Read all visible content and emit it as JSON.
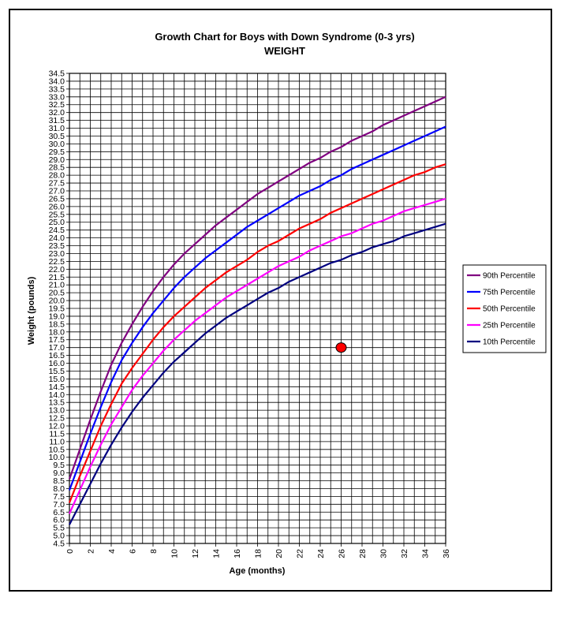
{
  "chart_data": {
    "type": "line",
    "title": "Growth Chart for Boys with Down Syndrome (0-3 yrs)",
    "subtitle": "WEIGHT",
    "xlabel": "Age (months)",
    "ylabel": "Weight  (pounds)",
    "xlim": [
      0,
      36
    ],
    "ylim": [
      4.5,
      34.5
    ],
    "x_tick_step": 2,
    "y_tick_step": 0.5,
    "x_grid_step": 1,
    "grid": true,
    "legend_position": "right",
    "x": [
      0,
      1,
      2,
      3,
      4,
      5,
      6,
      7,
      8,
      9,
      10,
      11,
      12,
      13,
      14,
      15,
      16,
      17,
      18,
      19,
      20,
      21,
      22,
      23,
      24,
      25,
      26,
      27,
      28,
      29,
      30,
      31,
      32,
      33,
      34,
      35,
      36
    ],
    "series": [
      {
        "name": "90th Percentile",
        "color": "#800080",
        "values": [
          8.6,
          10.5,
          12.4,
          14.2,
          15.9,
          17.3,
          18.5,
          19.6,
          20.6,
          21.5,
          22.3,
          23.0,
          23.6,
          24.2,
          24.8,
          25.3,
          25.8,
          26.3,
          26.8,
          27.2,
          27.6,
          28.0,
          28.4,
          28.8,
          29.1,
          29.5,
          29.8,
          30.2,
          30.5,
          30.8,
          31.2,
          31.5,
          31.8,
          32.1,
          32.4,
          32.7,
          33.0
        ]
      },
      {
        "name": "75th Percentile",
        "color": "#0000FF",
        "values": [
          7.9,
          9.7,
          11.5,
          13.2,
          14.8,
          16.2,
          17.3,
          18.3,
          19.2,
          20.0,
          20.8,
          21.5,
          22.1,
          22.7,
          23.2,
          23.7,
          24.2,
          24.7,
          25.1,
          25.5,
          25.9,
          26.3,
          26.7,
          27.0,
          27.3,
          27.7,
          28.0,
          28.4,
          28.7,
          29.0,
          29.3,
          29.6,
          29.9,
          30.2,
          30.5,
          30.8,
          31.1
        ]
      },
      {
        "name": "50th Percentile",
        "color": "#FF0000",
        "values": [
          7.1,
          8.8,
          10.4,
          12.0,
          13.4,
          14.7,
          15.7,
          16.6,
          17.5,
          18.3,
          19.0,
          19.6,
          20.2,
          20.8,
          21.3,
          21.8,
          22.2,
          22.6,
          23.1,
          23.5,
          23.8,
          24.2,
          24.6,
          24.9,
          25.2,
          25.6,
          25.9,
          26.2,
          26.5,
          26.8,
          27.1,
          27.4,
          27.7,
          28.0,
          28.2,
          28.5,
          28.7
        ]
      },
      {
        "name": "25th Percentile",
        "color": "#FF00FF",
        "values": [
          6.4,
          7.9,
          9.4,
          10.8,
          12.1,
          13.2,
          14.3,
          15.2,
          16.0,
          16.8,
          17.5,
          18.1,
          18.7,
          19.2,
          19.7,
          20.2,
          20.6,
          21.0,
          21.4,
          21.8,
          22.2,
          22.5,
          22.8,
          23.2,
          23.5,
          23.8,
          24.1,
          24.3,
          24.6,
          24.9,
          25.1,
          25.4,
          25.7,
          25.9,
          26.1,
          26.3,
          26.5
        ]
      },
      {
        "name": "10th Percentile",
        "color": "#000080",
        "values": [
          5.7,
          7.0,
          8.3,
          9.6,
          10.8,
          11.9,
          12.9,
          13.8,
          14.6,
          15.4,
          16.1,
          16.7,
          17.3,
          17.9,
          18.4,
          18.9,
          19.3,
          19.7,
          20.1,
          20.5,
          20.8,
          21.2,
          21.5,
          21.8,
          22.1,
          22.4,
          22.6,
          22.9,
          23.1,
          23.4,
          23.6,
          23.8,
          24.1,
          24.3,
          24.5,
          24.7,
          24.9
        ]
      }
    ],
    "marker": {
      "x": 26,
      "y": 17.0,
      "color": "#FF0000"
    }
  }
}
